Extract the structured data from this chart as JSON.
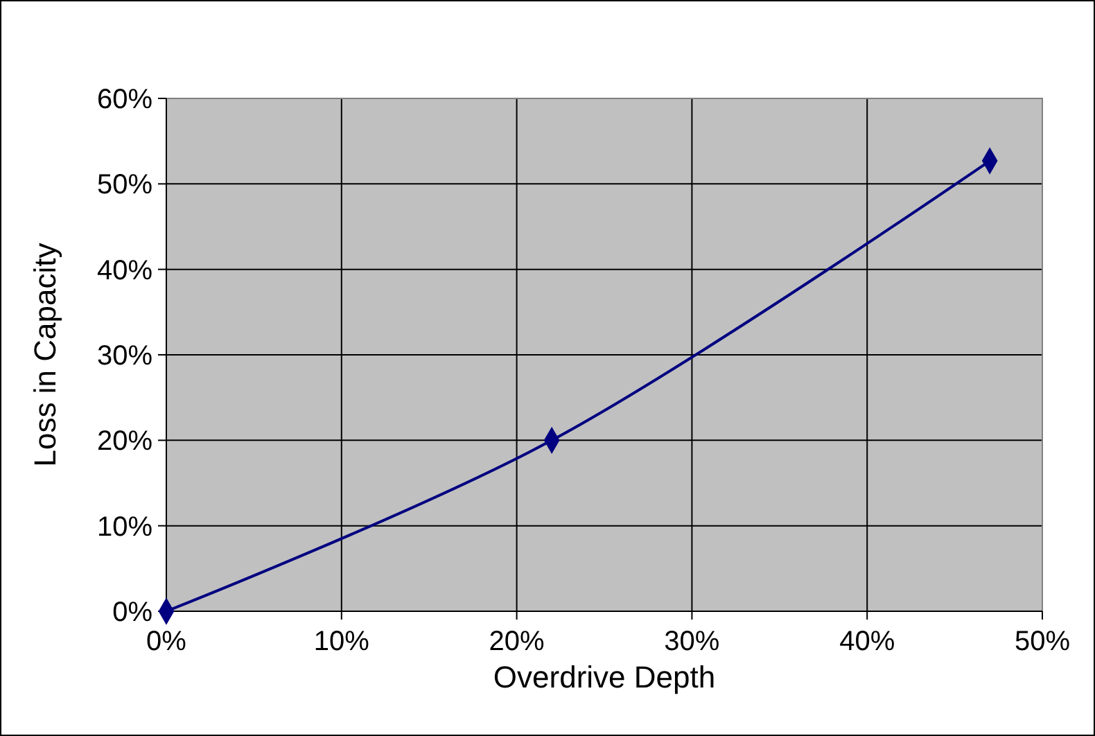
{
  "chart_data": {
    "type": "line",
    "xlabel": "Overdrive Depth",
    "ylabel": "Loss in Capacity",
    "x": [
      0,
      22,
      47
    ],
    "series": [
      {
        "color": "#000080",
        "values": [
          0,
          20,
          52.7
        ]
      }
    ],
    "xlim": [
      0,
      50
    ],
    "xticks": [
      {
        "value": 0,
        "label": "0%"
      },
      {
        "value": 10,
        "label": "10%"
      },
      {
        "value": 20,
        "label": "20%"
      },
      {
        "value": 30,
        "label": "30%"
      },
      {
        "value": 40,
        "label": "40%"
      },
      {
        "value": 50,
        "label": "50%"
      }
    ],
    "ylim": [
      0,
      60
    ],
    "yticks": [
      {
        "value": 0,
        "label": "0%"
      },
      {
        "value": 10,
        "label": "10%"
      },
      {
        "value": 20,
        "label": "20%"
      },
      {
        "value": 30,
        "label": "30%"
      },
      {
        "value": 40,
        "label": "40%"
      },
      {
        "value": 50,
        "label": "50%"
      },
      {
        "value": 60,
        "label": "60%"
      }
    ],
    "grid": true,
    "marker": "diamond",
    "line_style": "solid"
  }
}
